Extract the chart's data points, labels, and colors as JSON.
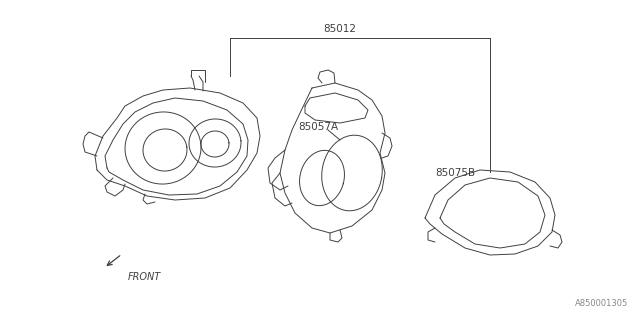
{
  "bg_color": "#ffffff",
  "line_color": "#404040",
  "text_color": "#404040",
  "label_85012": "85012",
  "label_85057A": "85057A",
  "label_85075B": "85075B",
  "label_front": "FRONT",
  "label_ref": "A850001305",
  "fig_width": 6.4,
  "fig_height": 3.2,
  "dpi": 100
}
